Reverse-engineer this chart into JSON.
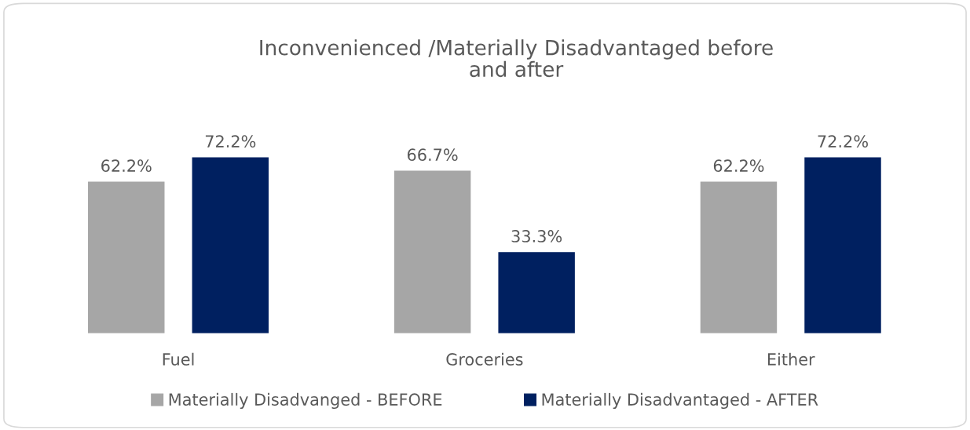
{
  "chart_data": {
    "type": "bar",
    "title": "Inconvenienced /Materially Disadvantaged before\nand after",
    "categories": [
      "Fuel",
      "Groceries",
      "Either"
    ],
    "series": [
      {
        "name": "Materially Disadvanged - BEFORE",
        "color": "#a6a6a6",
        "values": [
          62.2,
          66.7,
          62.2
        ],
        "value_labels": [
          "62.2%",
          "66.7%",
          "62.2%"
        ]
      },
      {
        "name": "Materially Disadvantaged - AFTER",
        "color": "#002060",
        "values": [
          72.2,
          33.3,
          72.2
        ],
        "value_labels": [
          "72.2%",
          "33.3%",
          "72.2%"
        ]
      }
    ],
    "legend": "bottom"
  }
}
